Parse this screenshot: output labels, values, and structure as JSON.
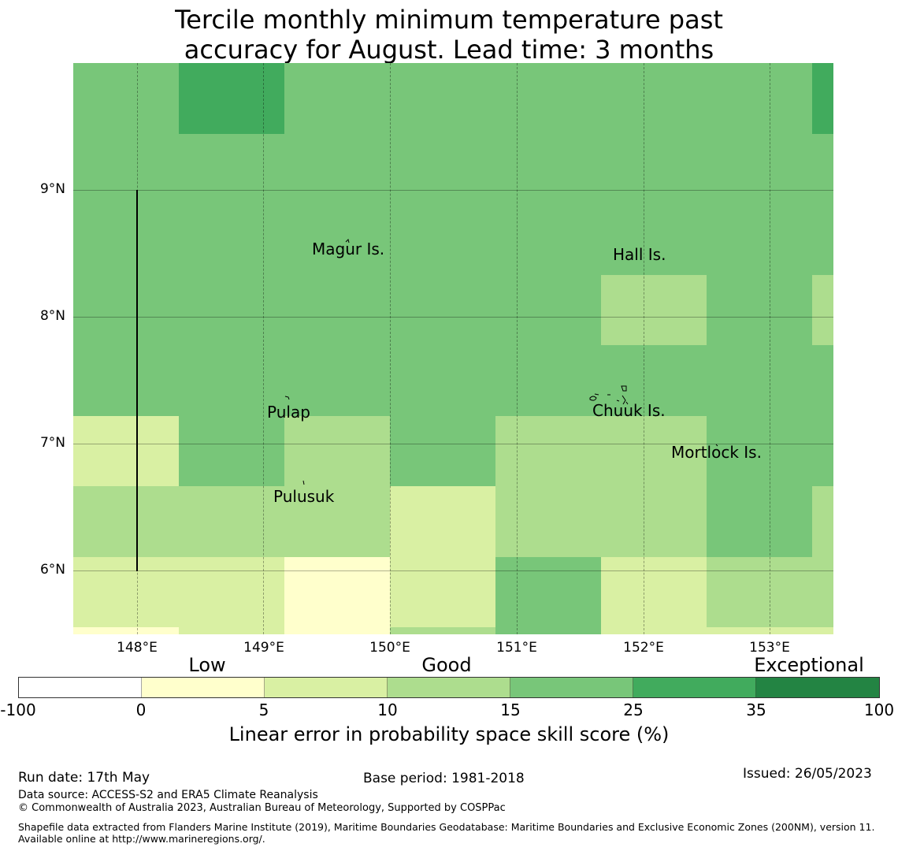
{
  "title_line1": "Tercile monthly minimum temperature past",
  "title_line2": "accuracy for August. Lead time: 3 months",
  "map": {
    "y_ticks": [
      "9°N",
      "8°N",
      "7°N",
      "6°N"
    ],
    "x_ticks": [
      "148°E",
      "149°E",
      "150°E",
      "151°E",
      "152°E",
      "153°E"
    ],
    "islands": [
      {
        "name": "Magur Is."
      },
      {
        "name": "Hall Is."
      },
      {
        "name": "Pulap"
      },
      {
        "name": "Chuuk Is."
      },
      {
        "name": "Mortlock Is."
      },
      {
        "name": "Pulusuk"
      }
    ],
    "skill_grid_rows_north_to_south": [
      [
        "15-25",
        "25-35",
        "15-25",
        "15-25",
        "15-25",
        "15-25",
        "15-25",
        "25-35"
      ],
      [
        "15-25",
        "15-25",
        "15-25",
        "15-25",
        "15-25",
        "15-25",
        "15-25",
        "15-25"
      ],
      [
        "15-25",
        "15-25",
        "15-25",
        "15-25",
        "15-25",
        "15-25",
        "15-25",
        "15-25"
      ],
      [
        "15-25",
        "15-25",
        "15-25",
        "15-25",
        "15-25",
        "10-15",
        "15-25",
        "10-15"
      ],
      [
        "15-25",
        "15-25",
        "15-25",
        "15-25",
        "15-25",
        "15-25",
        "15-25",
        "15-25"
      ],
      [
        "5-10",
        "15-25",
        "10-15",
        "15-25",
        "10-15",
        "10-15",
        "15-25",
        "15-25"
      ],
      [
        "10-15",
        "10-15",
        "10-15",
        "5-10",
        "10-15",
        "10-15",
        "15-25",
        "10-15"
      ],
      [
        "5-10",
        "5-10",
        "0-5",
        "5-10",
        "15-25",
        "5-10",
        "10-15",
        "10-15"
      ],
      [
        "0-5",
        "5-10",
        "0-5",
        "10-15",
        "15-25",
        "5-10",
        "5-10",
        "5-10"
      ]
    ]
  },
  "legend": {
    "categories": [
      "Low",
      "Good",
      "Exceptional"
    ],
    "ticks": [
      "-100",
      "0",
      "5",
      "10",
      "15",
      "25",
      "35",
      "100"
    ],
    "colors": [
      "#ffffff",
      "#ffffcc",
      "#d9f0a3",
      "#addd8e",
      "#78c679",
      "#41ab5d",
      "#238443"
    ],
    "label": "Linear error in probability space skill score (%)"
  },
  "footer": {
    "run_date": "Run date: 17th May",
    "base_period": "Base period: 1981-2018",
    "issued": "Issued: 26/05/2023",
    "data_source": "Data source: ACCESS-S2 and ERA5 Climate Reanalysis",
    "copyright": "© Commonwealth of Australia 2023, Australian Bureau of Meteorology, Supported by COSPPac",
    "shapefile": "Shapefile data extracted from Flanders Marine Institute (2019), Maritime Boundaries Geodatabase: Maritime Boundaries and Exclusive Economic Zones (200NM), version 11. Available online at http://www.marineregions.org/."
  }
}
